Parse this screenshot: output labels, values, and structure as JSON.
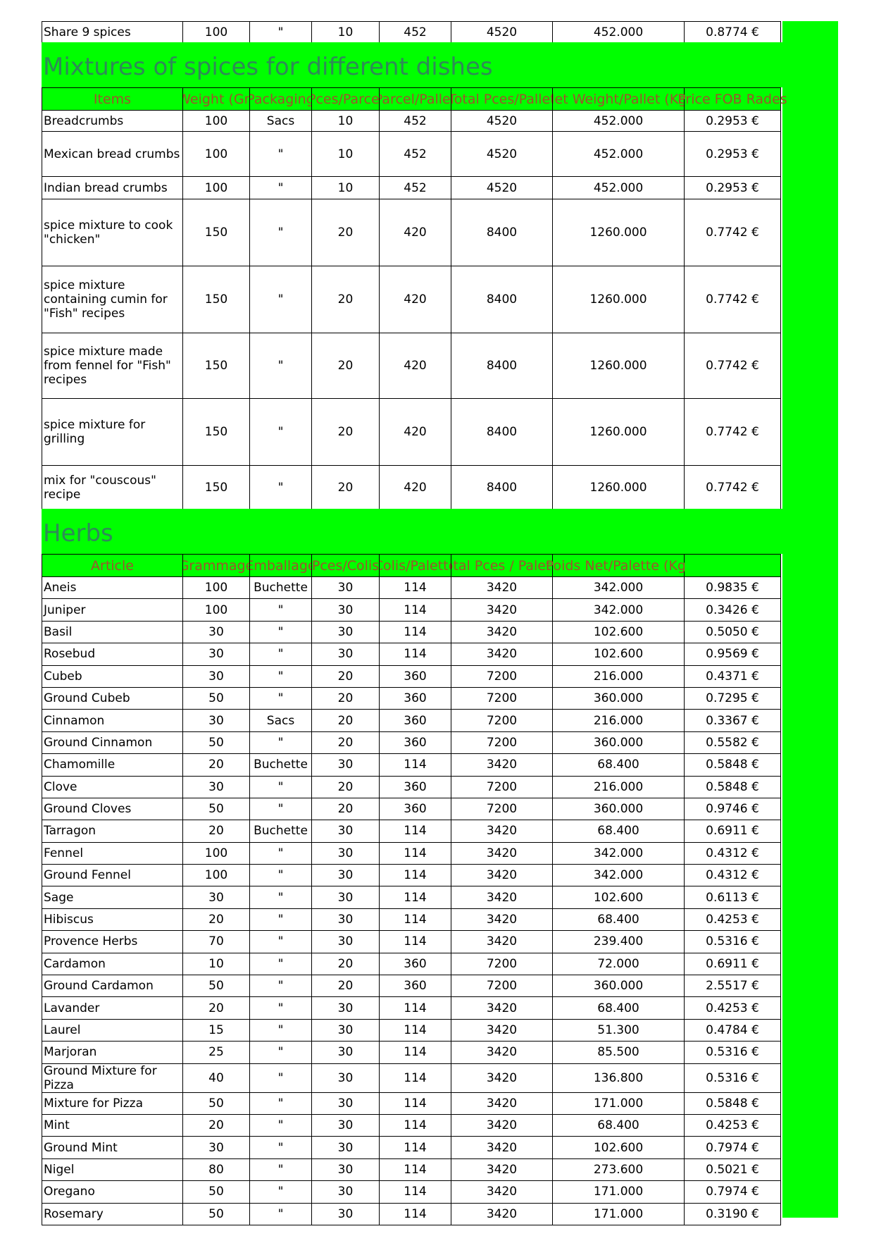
{
  "top_row": [
    "Share 9 spices",
    "100",
    "\"",
    "10",
    "452",
    "4520",
    "452.000",
    "0.8774 €"
  ],
  "mixtures": {
    "title": "Mixtures of spices for different dishes",
    "headers": [
      "Items",
      "Weight (Gr)",
      "Packaging",
      "Pces/Parcel",
      "Parcel/Pallet",
      "Total Pces/Pallet",
      "Net Weight/Pallet (Kg)",
      "Price FOB Rades"
    ],
    "rows": [
      [
        "Breadcrumbs",
        "100",
        "Sacs",
        "10",
        "452",
        "4520",
        "452.000",
        "0.2953 €"
      ],
      [
        "Mexican bread crumbs",
        "100",
        "\"",
        "10",
        "452",
        "4520",
        "452.000",
        "0.2953 €"
      ],
      [
        "Indian bread crumbs",
        "100",
        "\"",
        "10",
        "452",
        "4520",
        "452.000",
        "0.2953 €"
      ],
      [
        "spice mixture to cook \"chicken\"",
        "150",
        "\"",
        "20",
        "420",
        "8400",
        "1260.000",
        "0.7742 €"
      ],
      [
        "spice mixture containing cumin for \"Fish\" recipes",
        "150",
        "\"",
        "20",
        "420",
        "8400",
        "1260.000",
        "0.7742 €"
      ],
      [
        "spice mixture made from fennel for \"Fish\" recipes",
        "150",
        "\"",
        "20",
        "420",
        "8400",
        "1260.000",
        "0.7742 €"
      ],
      [
        "spice mixture for grilling",
        "150",
        "\"",
        "20",
        "420",
        "8400",
        "1260.000",
        "0.7742 €"
      ],
      [
        "mix for \"couscous\" recipe",
        "150",
        "\"",
        "20",
        "420",
        "8400",
        "1260.000",
        "0.7742 €"
      ]
    ]
  },
  "herbs": {
    "title": "Herbs",
    "headers": [
      "Article",
      "Grammage",
      "Emballage",
      "Pces/Colis",
      "Colis/Palette",
      "Total Pces / Palette",
      "Poids Net/Palette (Kg)",
      ""
    ],
    "rows": [
      [
        "Aneis",
        "100",
        "Buchette",
        "30",
        "114",
        "3420",
        "342.000",
        "0.9835 €"
      ],
      [
        "Juniper",
        "100",
        "\"",
        "30",
        "114",
        "3420",
        "342.000",
        "0.3426 €"
      ],
      [
        "Basil",
        "30",
        "\"",
        "30",
        "114",
        "3420",
        "102.600",
        "0.5050 €"
      ],
      [
        "Rosebud",
        "30",
        "\"",
        "30",
        "114",
        "3420",
        "102.600",
        "0.9569 €"
      ],
      [
        "Cubeb",
        "30",
        "\"",
        "20",
        "360",
        "7200",
        "216.000",
        "0.4371 €"
      ],
      [
        "Ground Cubeb",
        "50",
        "\"",
        "20",
        "360",
        "7200",
        "360.000",
        "0.7295 €"
      ],
      [
        "Cinnamon",
        "30",
        "Sacs",
        "20",
        "360",
        "7200",
        "216.000",
        "0.3367 €"
      ],
      [
        "Ground Cinnamon",
        "50",
        "\"",
        "20",
        "360",
        "7200",
        "360.000",
        "0.5582 €"
      ],
      [
        "Chamomille",
        "20",
        "Buchette",
        "30",
        "114",
        "3420",
        "68.400",
        "0.5848 €"
      ],
      [
        "Clove",
        "30",
        "\"",
        "20",
        "360",
        "7200",
        "216.000",
        "0.5848 €"
      ],
      [
        "Ground Cloves",
        "50",
        "\"",
        "20",
        "360",
        "7200",
        "360.000",
        "0.9746 €"
      ],
      [
        "Tarragon",
        "20",
        "Buchette",
        "30",
        "114",
        "3420",
        "68.400",
        "0.6911 €"
      ],
      [
        "Fennel",
        "100",
        "\"",
        "30",
        "114",
        "3420",
        "342.000",
        "0.4312 €"
      ],
      [
        "Ground Fennel",
        "100",
        "\"",
        "30",
        "114",
        "3420",
        "342.000",
        "0.4312 €"
      ],
      [
        "Sage",
        "30",
        "\"",
        "30",
        "114",
        "3420",
        "102.600",
        "0.6113 €"
      ],
      [
        "Hibiscus",
        "20",
        "\"",
        "30",
        "114",
        "3420",
        "68.400",
        "0.4253 €"
      ],
      [
        "Provence Herbs",
        "70",
        "\"",
        "30",
        "114",
        "3420",
        "239.400",
        "0.5316 €"
      ],
      [
        "Cardamon",
        "10",
        "\"",
        "20",
        "360",
        "7200",
        "72.000",
        "0.6911 €"
      ],
      [
        "Ground Cardamon",
        "50",
        "\"",
        "20",
        "360",
        "7200",
        "360.000",
        "2.5517 €"
      ],
      [
        "Lavander",
        "20",
        "\"",
        "30",
        "114",
        "3420",
        "68.400",
        "0.4253 €"
      ],
      [
        "Laurel",
        "15",
        "\"",
        "30",
        "114",
        "3420",
        "51.300",
        "0.4784 €"
      ],
      [
        "Marjoran",
        "25",
        "\"",
        "30",
        "114",
        "3420",
        "85.500",
        "0.5316 €"
      ],
      [
        "Ground Mixture for Pizza",
        "40",
        "\"",
        "30",
        "114",
        "3420",
        "136.800",
        "0.5316 €"
      ],
      [
        "Mixture for Pizza",
        "50",
        "\"",
        "30",
        "114",
        "3420",
        "171.000",
        "0.5848 €"
      ],
      [
        "Mint",
        "20",
        "\"",
        "30",
        "114",
        "3420",
        "68.400",
        "0.4253 €"
      ],
      [
        "Ground Mint",
        "30",
        "\"",
        "30",
        "114",
        "3420",
        "102.600",
        "0.7974 €"
      ],
      [
        "Nigel",
        "80",
        "\"",
        "30",
        "114",
        "3420",
        "273.600",
        "0.5021 €"
      ],
      [
        "Oregano",
        "50",
        "\"",
        "30",
        "114",
        "3420",
        "171.000",
        "0.7974 €"
      ],
      [
        "Rosemary",
        "50",
        "\"",
        "30",
        "114",
        "3420",
        "171.000",
        "0.3190 €"
      ]
    ]
  }
}
